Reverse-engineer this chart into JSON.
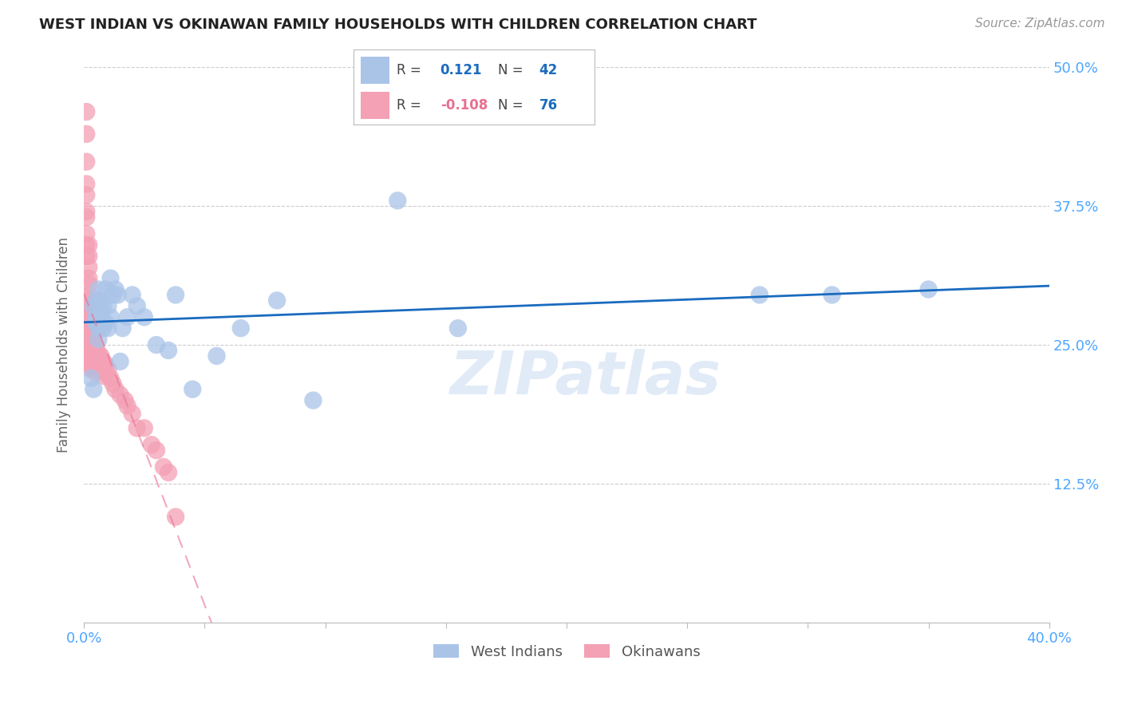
{
  "title": "WEST INDIAN VS OKINAWAN FAMILY HOUSEHOLDS WITH CHILDREN CORRELATION CHART",
  "source": "Source: ZipAtlas.com",
  "ylabel": "Family Households with Children",
  "xmin": 0.0,
  "xmax": 0.4,
  "ymin": 0.0,
  "ymax": 0.5,
  "yticks": [
    0.0,
    0.125,
    0.25,
    0.375,
    0.5
  ],
  "ytick_labels": [
    "",
    "12.5%",
    "25.0%",
    "37.5%",
    "50.0%"
  ],
  "west_indians_R": 0.121,
  "west_indians_N": 42,
  "okinawans_R": -0.108,
  "okinawans_N": 76,
  "west_indians_color": "#aac4e8",
  "okinawans_color": "#f4a0b5",
  "trend_blue": "#1a6bbf",
  "trend_pink": "#e87090",
  "watermark": "ZIPatlas",
  "west_indians_x": [
    0.003,
    0.004,
    0.004,
    0.005,
    0.005,
    0.005,
    0.006,
    0.006,
    0.006,
    0.007,
    0.007,
    0.008,
    0.008,
    0.008,
    0.009,
    0.009,
    0.01,
    0.01,
    0.011,
    0.011,
    0.012,
    0.013,
    0.014,
    0.015,
    0.016,
    0.018,
    0.02,
    0.022,
    0.025,
    0.03,
    0.035,
    0.038,
    0.045,
    0.055,
    0.065,
    0.08,
    0.095,
    0.13,
    0.155,
    0.28,
    0.31,
    0.35
  ],
  "west_indians_y": [
    0.22,
    0.285,
    0.21,
    0.27,
    0.29,
    0.275,
    0.265,
    0.3,
    0.255,
    0.28,
    0.29,
    0.265,
    0.285,
    0.27,
    0.27,
    0.3,
    0.285,
    0.265,
    0.31,
    0.275,
    0.295,
    0.3,
    0.295,
    0.235,
    0.265,
    0.275,
    0.295,
    0.285,
    0.275,
    0.25,
    0.245,
    0.295,
    0.21,
    0.24,
    0.265,
    0.29,
    0.2,
    0.38,
    0.265,
    0.295,
    0.295,
    0.3
  ],
  "okinawans_x": [
    0.001,
    0.001,
    0.001,
    0.001,
    0.001,
    0.001,
    0.001,
    0.001,
    0.001,
    0.001,
    0.002,
    0.002,
    0.002,
    0.002,
    0.002,
    0.002,
    0.002,
    0.002,
    0.002,
    0.002,
    0.002,
    0.002,
    0.002,
    0.002,
    0.003,
    0.003,
    0.003,
    0.003,
    0.003,
    0.003,
    0.003,
    0.003,
    0.003,
    0.003,
    0.003,
    0.003,
    0.004,
    0.004,
    0.004,
    0.004,
    0.004,
    0.004,
    0.004,
    0.004,
    0.005,
    0.005,
    0.005,
    0.005,
    0.005,
    0.005,
    0.006,
    0.006,
    0.006,
    0.007,
    0.007,
    0.007,
    0.008,
    0.008,
    0.008,
    0.009,
    0.009,
    0.01,
    0.011,
    0.012,
    0.013,
    0.015,
    0.017,
    0.018,
    0.02,
    0.022,
    0.025,
    0.028,
    0.03,
    0.033,
    0.035,
    0.038
  ],
  "okinawans_y": [
    0.46,
    0.44,
    0.415,
    0.395,
    0.385,
    0.37,
    0.365,
    0.35,
    0.34,
    0.33,
    0.34,
    0.33,
    0.32,
    0.31,
    0.305,
    0.295,
    0.29,
    0.285,
    0.28,
    0.275,
    0.27,
    0.265,
    0.26,
    0.258,
    0.255,
    0.252,
    0.25,
    0.248,
    0.245,
    0.242,
    0.24,
    0.238,
    0.235,
    0.232,
    0.23,
    0.228,
    0.26,
    0.255,
    0.25,
    0.245,
    0.242,
    0.238,
    0.235,
    0.232,
    0.248,
    0.245,
    0.24,
    0.235,
    0.23,
    0.225,
    0.242,
    0.238,
    0.235,
    0.24,
    0.235,
    0.23,
    0.235,
    0.228,
    0.222,
    0.232,
    0.225,
    0.228,
    0.22,
    0.215,
    0.21,
    0.205,
    0.2,
    0.195,
    0.188,
    0.175,
    0.175,
    0.16,
    0.155,
    0.14,
    0.135,
    0.095
  ]
}
